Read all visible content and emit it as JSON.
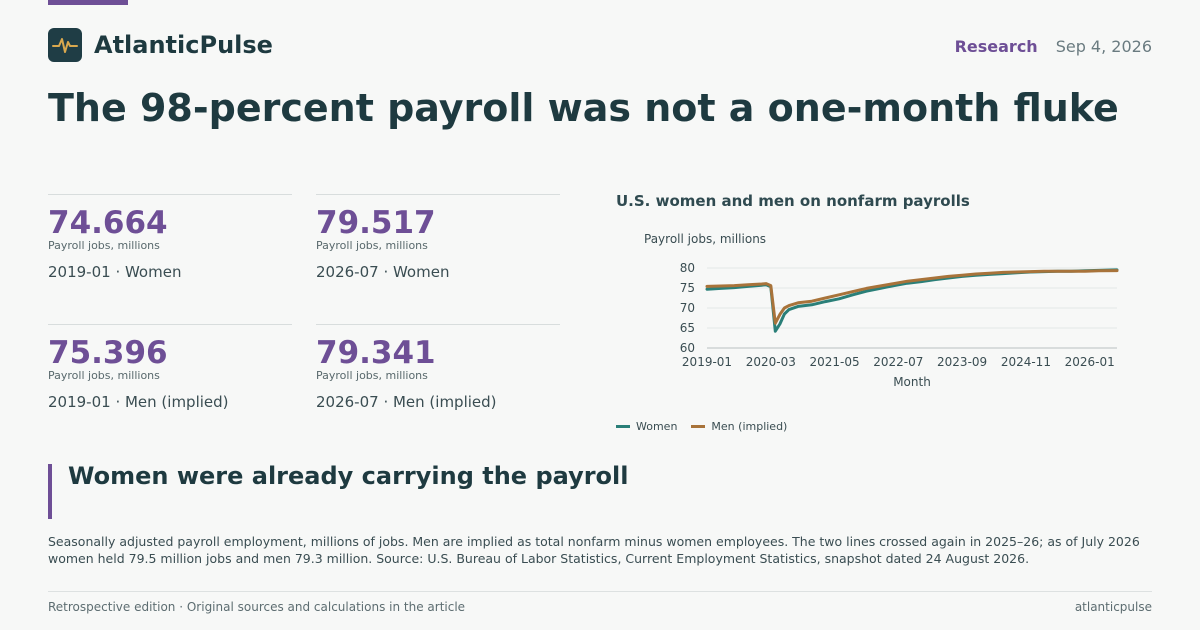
{
  "brand": {
    "name": "AtlanticPulse"
  },
  "header": {
    "section": "Research",
    "date": "Sep 4, 2026"
  },
  "headline": "The 98-percent payroll was not a one-month fluke",
  "stats": [
    {
      "value": "74.664",
      "unit": "Payroll jobs, millions",
      "label": "2019-01 · Women"
    },
    {
      "value": "79.517",
      "unit": "Payroll jobs, millions",
      "label": "2026-07 · Women"
    },
    {
      "value": "75.396",
      "unit": "Payroll jobs, millions",
      "label": "2019-01 · Men (implied)"
    },
    {
      "value": "79.341",
      "unit": "Payroll jobs, millions",
      "label": "2026-07 · Men (implied)"
    }
  ],
  "subhead": "Women were already carrying the payroll",
  "body": "Seasonally adjusted payroll employment, millions of jobs. Men are implied as total nonfarm minus women employees. The two lines crossed again in 2025–26; as of July 2026 women held 79.5 million jobs and men 79.3 million. Source: U.S. Bureau of Labor Statistics, Current Employment Statistics, snapshot dated 24 August 2026.",
  "footer": {
    "left": "Retrospective edition · Original sources and calculations in the article",
    "right": "atlanticpulse"
  },
  "colors": {
    "accent": "#6e4f96",
    "women": "#2a7f78",
    "men": "#a8733a"
  },
  "chart_data": {
    "type": "line",
    "title": "U.S. women and men on nonfarm payrolls",
    "ylabel": "Payroll jobs, millions",
    "xlabel": "Month",
    "ylim": [
      60,
      82
    ],
    "yticks": [
      60,
      65,
      70,
      75,
      80
    ],
    "xticks": [
      "2019-01",
      "2020-03",
      "2021-05",
      "2022-07",
      "2023-09",
      "2024-11",
      "2026-01"
    ],
    "x": [
      "2019-01",
      "2019-04",
      "2019-07",
      "2019-10",
      "2020-01",
      "2020-02",
      "2020-03",
      "2020-04",
      "2020-05",
      "2020-06",
      "2020-07",
      "2020-09",
      "2020-12",
      "2021-03",
      "2021-06",
      "2021-09",
      "2021-12",
      "2022-03",
      "2022-06",
      "2022-09",
      "2022-12",
      "2023-03",
      "2023-06",
      "2023-09",
      "2023-12",
      "2024-03",
      "2024-06",
      "2024-09",
      "2024-12",
      "2025-03",
      "2025-06",
      "2025-09",
      "2025-12",
      "2026-03",
      "2026-07"
    ],
    "series": [
      {
        "name": "Women",
        "values": [
          74.7,
          74.9,
          75.1,
          75.4,
          75.7,
          75.8,
          75.3,
          64.2,
          66.0,
          68.5,
          69.6,
          70.4,
          70.8,
          71.6,
          72.3,
          73.3,
          74.2,
          74.9,
          75.6,
          76.2,
          76.6,
          77.1,
          77.5,
          77.9,
          78.2,
          78.4,
          78.6,
          78.8,
          79.0,
          79.1,
          79.2,
          79.2,
          79.3,
          79.4,
          79.517
        ]
      },
      {
        "name": "Men (implied)",
        "values": [
          75.4,
          75.5,
          75.6,
          75.8,
          76.0,
          76.1,
          75.6,
          66.2,
          68.4,
          70.0,
          70.6,
          71.3,
          71.7,
          72.5,
          73.3,
          74.1,
          74.9,
          75.5,
          76.1,
          76.7,
          77.1,
          77.5,
          77.9,
          78.2,
          78.5,
          78.7,
          78.9,
          79.0,
          79.1,
          79.2,
          79.2,
          79.2,
          79.2,
          79.3,
          79.341
        ]
      }
    ],
    "legend": "bottom-left",
    "grid": true
  }
}
